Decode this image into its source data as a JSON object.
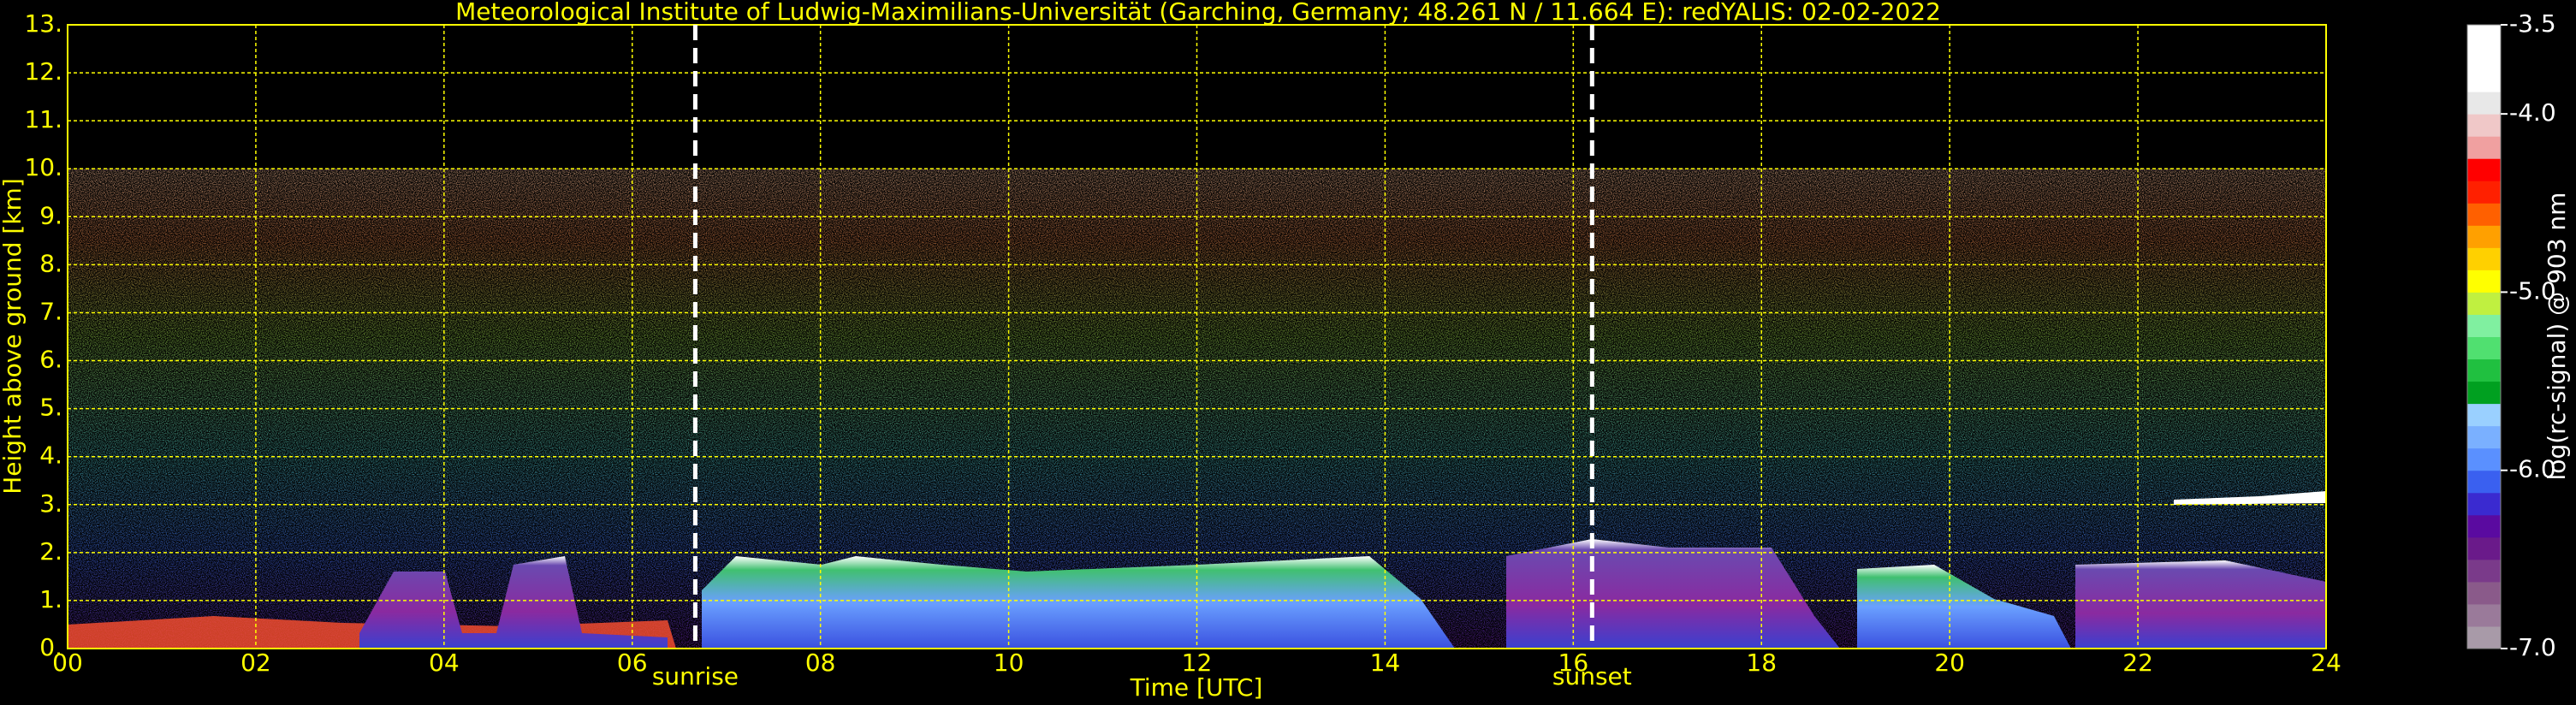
{
  "chart_data": {
    "type": "heatmap",
    "title": "Meteorological Institute of Ludwig-Maximilians-Universität (Garching, Germany; 48.261 N / 11.664 E):    redYALIS: 02-02-2022",
    "x_label": "Time [UTC]",
    "y_label": "Height above ground [km]",
    "xlim": [
      0,
      24
    ],
    "xticks": [
      {
        "value": 0,
        "label": "00"
      },
      {
        "value": 2,
        "label": "02"
      },
      {
        "value": 4,
        "label": "04"
      },
      {
        "value": 6,
        "label": "06"
      },
      {
        "value": 8,
        "label": "08"
      },
      {
        "value": 10,
        "label": "10"
      },
      {
        "value": 12,
        "label": "12"
      },
      {
        "value": 14,
        "label": "14"
      },
      {
        "value": 16,
        "label": "16"
      },
      {
        "value": 18,
        "label": "18"
      },
      {
        "value": 20,
        "label": "20"
      },
      {
        "value": 22,
        "label": "22"
      },
      {
        "value": 24,
        "label": "24"
      }
    ],
    "ylim": [
      0,
      13
    ],
    "yticks": [
      {
        "value": 0,
        "label": "0."
      },
      {
        "value": 1,
        "label": "1."
      },
      {
        "value": 2,
        "label": "2."
      },
      {
        "value": 3,
        "label": "3."
      },
      {
        "value": 4,
        "label": "4."
      },
      {
        "value": 5,
        "label": "5."
      },
      {
        "value": 6,
        "label": "6."
      },
      {
        "value": 7,
        "label": "7."
      },
      {
        "value": 8,
        "label": "8."
      },
      {
        "value": 9,
        "label": "9."
      },
      {
        "value": 10,
        "label": "10."
      },
      {
        "value": 11,
        "label": "11."
      },
      {
        "value": 12,
        "label": "12."
      },
      {
        "value": 13,
        "label": "13."
      }
    ],
    "grid": true,
    "grid_color": "#ffff00",
    "colorbar": {
      "label": "log(rc-signal) @ 903 nm",
      "clim": [
        -7,
        -3.5
      ],
      "ticks": [
        -3.5,
        {
          "value": -4,
          "label": "-4.0"
        },
        {
          "value": -5,
          "label": "-5.0"
        },
        {
          "value": -6,
          "label": "-6.0"
        },
        {
          "value": -7,
          "label": "-7.0"
        }
      ],
      "colors": [
        "#a89aa8",
        "#9a7a9a",
        "#8a5a8a",
        "#7a3a8a",
        "#6a1a8a",
        "#5a0aa0",
        "#3a2ad0",
        "#3a60f0",
        "#5a90ff",
        "#7ab0ff",
        "#9ad0ff",
        "#00a020",
        "#20c040",
        "#50e070",
        "#80f0a0",
        "#c0f040",
        "#ffff00",
        "#ffd000",
        "#ffa000",
        "#ff6000",
        "#ff2000",
        "#ff0000",
        "#f0a0a0",
        "#f0c8c8",
        "#e8e8e8",
        "#ffffff",
        "#ffffff",
        "#ffffff"
      ]
    },
    "annotations": [
      {
        "text": "sunrise",
        "x": 6.67
      },
      {
        "text": "sunset",
        "x": 16.2
      }
    ]
  }
}
